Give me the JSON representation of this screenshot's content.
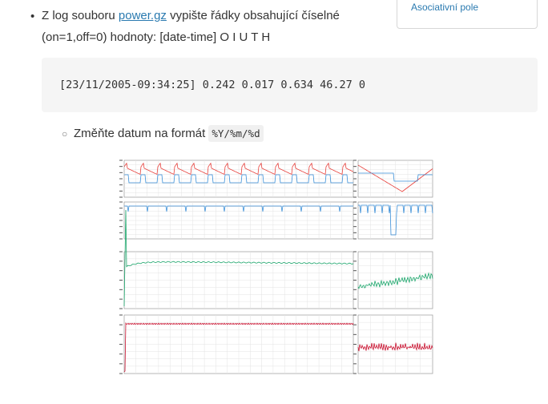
{
  "sidebar": {
    "link_label": "Asociativní pole"
  },
  "task": {
    "text_before": "Z log souboru ",
    "link_text": "power.gz",
    "text_after": " vypište řádky obsahující číselné (on=1,off=0) hodnoty: [date-time] O I U T H"
  },
  "code_sample": "[23/11/2005-09:34:25] 0.242 0.017 0.634 46.27 0",
  "subtask": {
    "text": "Změňte datum na formát ",
    "format_code": "%Y/%m/%d"
  },
  "colors": {
    "link": "#2a7ab0",
    "code_bg": "#f5f5f5",
    "plot_red": "#e8413c",
    "plot_blue": "#3a8fd8",
    "plot_green": "#1aa56a",
    "plot_crimson": "#c8102e"
  }
}
